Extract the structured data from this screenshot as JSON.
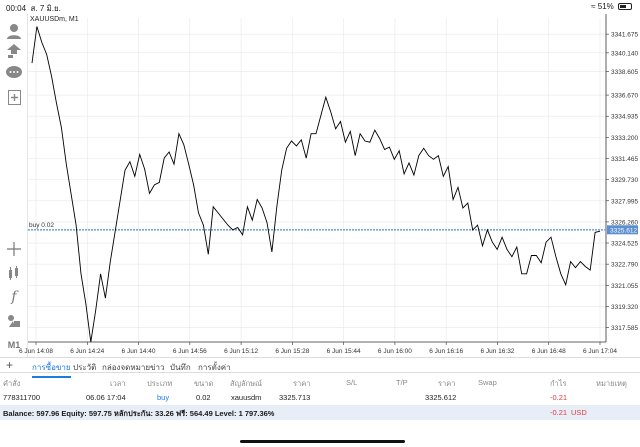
{
  "status_bar": {
    "time": "00:04",
    "date": "ส. 7 มิ.ย.",
    "battery": "51%"
  },
  "chart": {
    "title": "XAUUSDm, M1",
    "position_label": "buy 0.02",
    "current_price": "3325.612",
    "colors": {
      "line": "#000000",
      "order_line": "#7aa7d9",
      "price_tag": "#5b8fd0",
      "grid": "#e8e8e8"
    }
  },
  "chart_data": {
    "type": "line",
    "title": "XAUUSDm, M1",
    "xlabel": "",
    "ylabel": "",
    "ylim": [
      3316.4,
      3343.0
    ],
    "y_ticks": [
      "3341.675",
      "3340.140",
      "3338.605",
      "3336.670",
      "3334.935",
      "3333.200",
      "3331.465",
      "3329.730",
      "3327.995",
      "3326.260",
      "3324.525",
      "3322.790",
      "3321.055",
      "3319.320",
      "3317.585"
    ],
    "x_ticks": [
      "6 Jun 14:08",
      "6 Jun 14:24",
      "6 Jun 14:40",
      "6 Jun 14:56",
      "6 Jun 15:12",
      "6 Jun 15:28",
      "6 Jun 15:44",
      "6 Jun 16:00",
      "6 Jun 16:16",
      "6 Jun 16:32",
      "6 Jun 16:48",
      "6 Jun 17:04"
    ],
    "series": [
      {
        "values": [
          3339.3,
          3342.3,
          3341.0,
          3340.0,
          3338.2,
          3336.0,
          3334.0,
          3331.0,
          3328.5,
          3326.0,
          3322.0,
          3319.5,
          3316.4,
          3319.0,
          3322.0,
          3320.0,
          3323.0,
          3325.5,
          3328.0,
          3330.5,
          3331.2,
          3330.0,
          3331.8,
          3330.6,
          3328.6,
          3329.3,
          3329.5,
          3331.5,
          3332.0,
          3331.0,
          3333.5,
          3332.6,
          3331.0,
          3329.3,
          3327.0,
          3326.0,
          3323.6,
          3327.5,
          3327.0,
          3326.5,
          3326.0,
          3325.6,
          3325.8,
          3325.2,
          3327.5,
          3326.4,
          3328.1,
          3327.4,
          3326.2,
          3323.8,
          3327.5,
          3330.5,
          3332.3,
          3332.9,
          3332.5,
          3333.0,
          3331.5,
          3333.5,
          3333.5,
          3335.0,
          3336.5,
          3335.3,
          3333.9,
          3334.5,
          3332.8,
          3333.7,
          3331.7,
          3333.5,
          3332.9,
          3332.8,
          3333.8,
          3333.1,
          3332.2,
          3332.4,
          3331.4,
          3332.1,
          3330.2,
          3331.1,
          3330.1,
          3331.7,
          3332.3,
          3331.7,
          3331.4,
          3331.7,
          3330.0,
          3330.8,
          3328.1,
          3329.1,
          3327.4,
          3327.8,
          3325.6,
          3326.0,
          3324.3,
          3325.6,
          3324.6,
          3324.0,
          3325.0,
          3324.0,
          3323.4,
          3324.2,
          3322.0,
          3322.0,
          3323.5,
          3323.5,
          3322.9,
          3324.6,
          3325.0,
          3323.4,
          3322.0,
          3321.1,
          3323.0,
          3322.5,
          3323.0,
          3322.6,
          3322.3,
          3325.4,
          3325.5
        ]
      }
    ],
    "grid": true,
    "current_price_line": 3325.612
  },
  "sidebar": {
    "items": [
      {
        "name": "account-icon"
      },
      {
        "name": "trade-icon"
      },
      {
        "name": "chat-icon"
      },
      {
        "name": "new-order-icon"
      },
      {
        "name": "crosshair-icon"
      },
      {
        "name": "indicators-icon"
      },
      {
        "name": "function-icon"
      },
      {
        "name": "objects-icon"
      }
    ],
    "timeframe": "M1"
  },
  "tabs": [
    {
      "label": "การซื้อขาย",
      "active": true
    },
    {
      "label": "ประวัติ",
      "active": false
    },
    {
      "label": "กล่องจดหมาย",
      "active": false
    },
    {
      "label": "ข่าว",
      "active": false
    },
    {
      "label": "บันทึก",
      "active": false
    },
    {
      "label": "การตั้งค่า",
      "active": false
    }
  ],
  "table": {
    "headers": [
      "คำสั่ง",
      "เวลา",
      "ประเภท",
      "ขนาด",
      "สัญลักษณ์",
      "ราคา",
      "S/L",
      "T/P",
      "ราคา",
      "Swap",
      "กำไร",
      "หมายเหตุ"
    ],
    "row": {
      "order": "778311700",
      "time": "06.06 17:04",
      "type": "buy",
      "size": "0.02",
      "symbol": "xauusdm",
      "open_price": "3325.713",
      "sl": "",
      "tp": "",
      "price": "3325.612",
      "swap": "",
      "profit": "-0.21",
      "comment": ""
    }
  },
  "balance": {
    "text": "Balance: 597.96 Equity: 597.75 หลักประกัน: 33.26 ฟรี: 564.49 Level: 1 797.36%",
    "profit": "-0.21",
    "currency": "USD"
  }
}
